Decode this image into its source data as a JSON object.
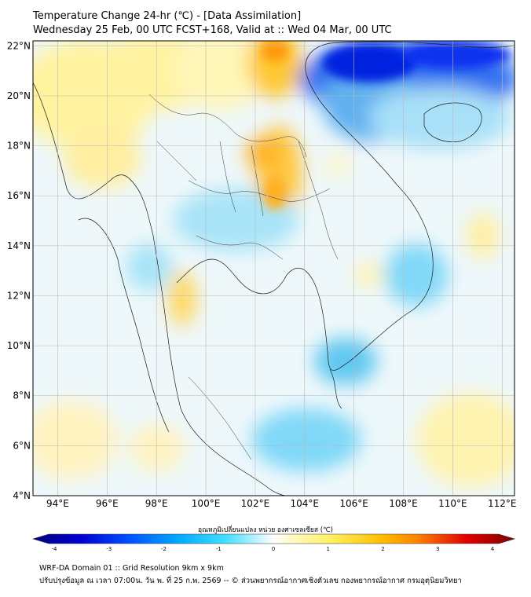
{
  "header": {
    "title": "Temperature Change 24-hr (℃) - [Data Assimilation]",
    "subtitle": "Wednesday 25 Feb, 00 UTC FCST+168, Valid at :: Wed 04 Mar, 00 UTC"
  },
  "map": {
    "lat_labels": [
      "22°N",
      "20°N",
      "18°N",
      "16°N",
      "14°N",
      "12°N",
      "10°N",
      "8°N",
      "6°N",
      "4°N"
    ],
    "lat_values": [
      22,
      20,
      18,
      16,
      14,
      12,
      10,
      8,
      6,
      4
    ],
    "lon_labels": [
      "94°E",
      "96°E",
      "98°E",
      "100°E",
      "102°E",
      "104°E",
      "106°E",
      "108°E",
      "110°E",
      "112°E"
    ],
    "lon_values": [
      94,
      96,
      98,
      100,
      102,
      104,
      106,
      108,
      110,
      112
    ],
    "lon_range": [
      93,
      112.5
    ],
    "lat_range": [
      4,
      22.2
    ]
  },
  "colorbar": {
    "label": "อุณหภูมิเปลี่ยนแปลง หน่วย องศาเซลเซียส (℃)",
    "ticks": [
      "-4",
      "-3",
      "-2",
      "-1",
      "0",
      "1",
      "2",
      "3",
      "4"
    ],
    "tick_values": [
      -4,
      -3,
      -2,
      -1,
      0,
      1,
      2,
      3,
      4
    ],
    "colors": [
      "#00007f",
      "#0000e0",
      "#0040ff",
      "#0090ff",
      "#00d0ff",
      "#80eaff",
      "#ffffff",
      "#ffff90",
      "#ffe040",
      "#ffb000",
      "#ff6000",
      "#e00000",
      "#7f0000"
    ]
  },
  "footer": {
    "line1": "WRF-DA Domain 01 :: Grid Resolution 9km x 9km",
    "line2": "ปรับปรุงข้อมูล ณ เวลา 07:00น. วัน พ. ที่ 25 ก.พ. 2569 -- © ส่วนพยากรณ์อากาศเชิงตัวเลข กองพยากรณ์อากาศ กรมอุตุนิยมวิทยา"
  }
}
